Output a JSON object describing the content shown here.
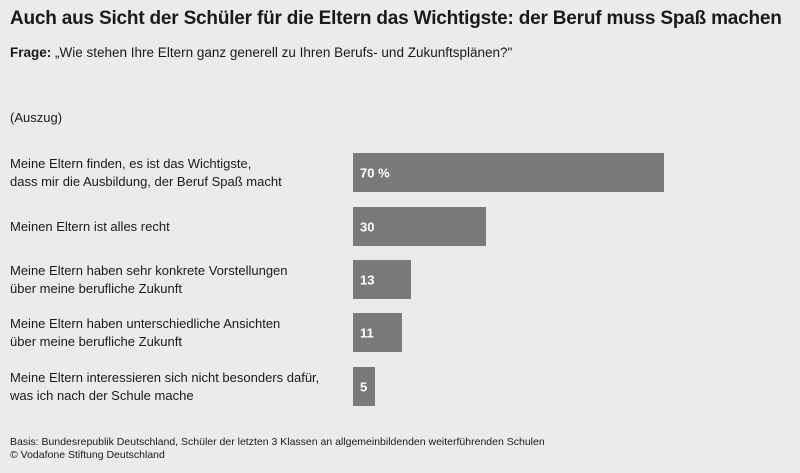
{
  "title": "Auch aus Sicht der Schüler für die Eltern das Wichtigste: der Beruf muss Spaß machen",
  "question_label": "Frage:",
  "question_text": " „Wie stehen Ihre Eltern ganz generell zu Ihren Berufs- und Zukunftsplänen?\"",
  "note": "(Auszug)",
  "footer": {
    "basis": "Basis: Bundesrepublik Deutschland, Schüler der letzten 3 Klassen an allgemeinbildenden weiterführenden Schulen",
    "copyright": "© Vodafone Stiftung Deutschland"
  },
  "colors": {
    "bar": "#7a7a7a",
    "background": "#ebebeb",
    "bar_text": "#ffffff"
  },
  "chart_data": {
    "type": "bar",
    "orientation": "horizontal",
    "categories": [
      [
        "Meine Eltern finden, es ist das Wichtigste,",
        "dass mir die Ausbildung, der Beruf Spaß macht"
      ],
      [
        "Meinen Eltern ist alles recht"
      ],
      [
        "Meine Eltern haben sehr konkrete Vorstellungen",
        "über meine berufliche Zukunft"
      ],
      [
        "Meine Eltern haben unterschiedliche Ansichten",
        "über meine berufliche Zukunft"
      ],
      [
        "Meine Eltern interessieren sich nicht besonders dafür,",
        "was ich nach der Schule mache"
      ]
    ],
    "values": [
      70,
      30,
      13,
      11,
      5
    ],
    "data_labels": [
      "70 %",
      "30",
      "13",
      "11",
      "5"
    ],
    "xlim": [
      0,
      100
    ]
  }
}
